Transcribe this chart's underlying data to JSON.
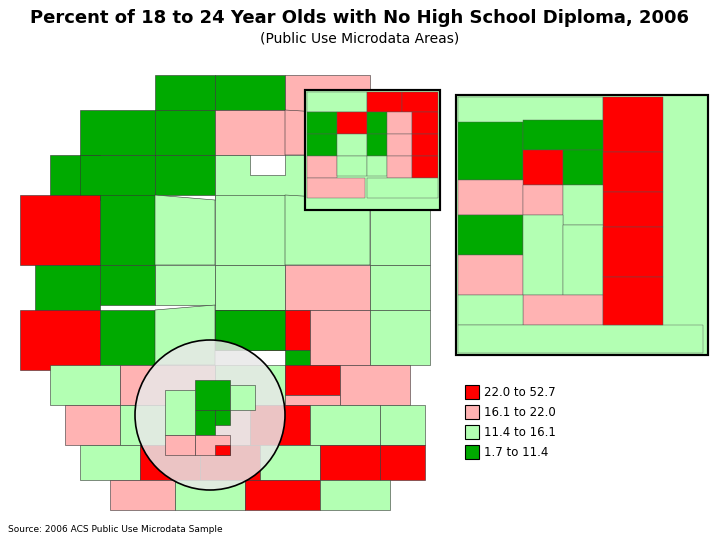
{
  "title": "Percent of 18 to 24 Year Olds with No High School Diploma, 2006",
  "subtitle": "(Public Use Microdata Areas)",
  "source": "Source: 2006 ACS Public Use Microdata Sample",
  "title_fontsize": 13,
  "subtitle_fontsize": 10,
  "source_fontsize": 6.5,
  "legend_labels": [
    "22.0 to 52.7",
    "16.1 to 22.0",
    "11.4 to 16.1",
    "1.7 to 11.4"
  ],
  "legend_colors": [
    "#ff0000",
    "#ffb3b3",
    "#b3ffb3",
    "#00aa00"
  ],
  "background_color": "#ffffff",
  "map_bg": "#d4f5d4",
  "inset_bg": "#d4f5d4",
  "circle_fill": "#e8e8e8"
}
